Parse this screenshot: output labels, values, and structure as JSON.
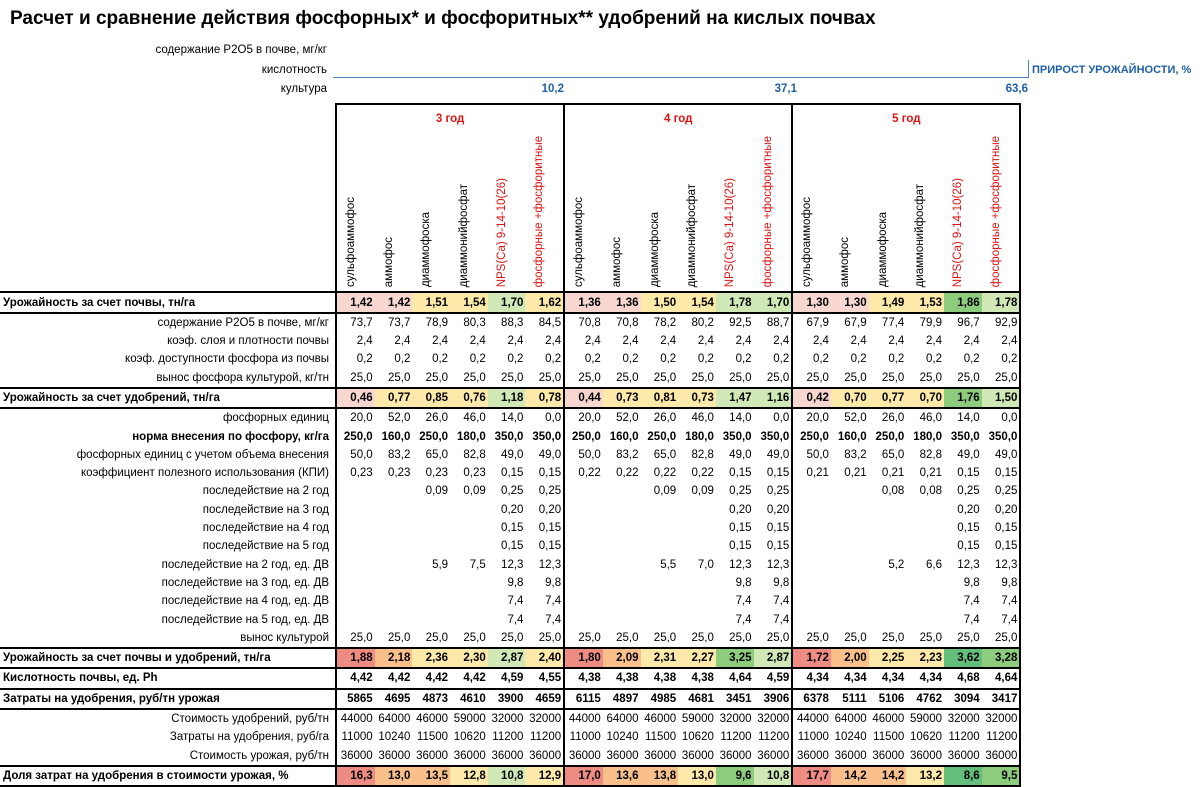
{
  "title": "Расчет и сравнение действия фосфорных* и фосфоритных**  удобрений на кислых почвах",
  "header_labels": {
    "p2o5": "содержание P2O5 в почве, мг/кг",
    "acidity": "кислотность",
    "crop": "культура"
  },
  "growth": {
    "label": "ПРИРОСТ УРОЖАЙНОСТИ, %",
    "values": [
      "10,2",
      "37,1",
      "63,6"
    ]
  },
  "years": [
    "3 год",
    "4 год",
    "5 год"
  ],
  "fertilizers": [
    {
      "name": "сульфоаммофос",
      "red": false
    },
    {
      "name": "аммофос",
      "red": false
    },
    {
      "name": "диаммофоска",
      "red": false
    },
    {
      "name": "диаммонийфосфат",
      "red": false
    },
    {
      "name": "NPS(Ca) 9-14-10(26)",
      "red": true
    },
    {
      "name": "фосфорные +фосфоритные",
      "red": true
    }
  ],
  "colors": {
    "red_high": "#f0a6a6",
    "red_mid": "#f7d7cf",
    "yellow": "#fde9a9",
    "light_green": "#cfe8b5",
    "green": "#8ccc7c",
    "strong_red": "#ee8b82",
    "orange": "#f9c08c",
    "strong_green": "#63be7b"
  },
  "rows": [
    {
      "label": "Урожайность за счет почвы, тн/га",
      "type": "key",
      "values": [
        "1,42",
        "1,42",
        "1,51",
        "1,54",
        "1,70",
        "1,62",
        "1,36",
        "1,36",
        "1,50",
        "1,54",
        "1,78",
        "1,70",
        "1,30",
        "1,30",
        "1,49",
        "1,53",
        "1,86",
        "1,78"
      ],
      "colors": [
        "red_mid",
        "red_mid",
        "yellow",
        "yellow",
        "light_green",
        "yellow",
        "red_mid",
        "red_mid",
        "yellow",
        "yellow",
        "light_green",
        "light_green",
        "red_mid",
        "red_mid",
        "yellow",
        "yellow",
        "green",
        "light_green"
      ]
    },
    {
      "label": "содержание P2O5 в почве, мг/кг",
      "type": "plain",
      "values": [
        "73,7",
        "73,7",
        "78,9",
        "80,3",
        "88,3",
        "84,5",
        "70,8",
        "70,8",
        "78,2",
        "80,2",
        "92,5",
        "88,7",
        "67,9",
        "67,9",
        "77,4",
        "79,9",
        "96,7",
        "92,9"
      ]
    },
    {
      "label": "коэф. слоя и плотности почвы",
      "type": "plain",
      "values": [
        "2,4",
        "2,4",
        "2,4",
        "2,4",
        "2,4",
        "2,4",
        "2,4",
        "2,4",
        "2,4",
        "2,4",
        "2,4",
        "2,4",
        "2,4",
        "2,4",
        "2,4",
        "2,4",
        "2,4",
        "2,4"
      ]
    },
    {
      "label": "коэф. доступности фосфора из почвы",
      "type": "plain",
      "values": [
        "0,2",
        "0,2",
        "0,2",
        "0,2",
        "0,2",
        "0,2",
        "0,2",
        "0,2",
        "0,2",
        "0,2",
        "0,2",
        "0,2",
        "0,2",
        "0,2",
        "0,2",
        "0,2",
        "0,2",
        "0,2"
      ]
    },
    {
      "label": "вынос фосфора культурой, кг/тн",
      "type": "plain",
      "values": [
        "25,0",
        "25,0",
        "25,0",
        "25,0",
        "25,0",
        "25,0",
        "25,0",
        "25,0",
        "25,0",
        "25,0",
        "25,0",
        "25,0",
        "25,0",
        "25,0",
        "25,0",
        "25,0",
        "25,0",
        "25,0"
      ]
    },
    {
      "label": "Урожайность за счет удобрений, тн/га",
      "type": "key",
      "values": [
        "0,46",
        "0,77",
        "0,85",
        "0,76",
        "1,18",
        "0,78",
        "0,44",
        "0,73",
        "0,81",
        "0,73",
        "1,47",
        "1,16",
        "0,42",
        "0,70",
        "0,77",
        "0,70",
        "1,76",
        "1,50"
      ],
      "colors": [
        "red_mid",
        "yellow",
        "yellow",
        "yellow",
        "light_green",
        "yellow",
        "red_mid",
        "yellow",
        "yellow",
        "yellow",
        "light_green",
        "light_green",
        "red_mid",
        "yellow",
        "yellow",
        "yellow",
        "green",
        "light_green"
      ]
    },
    {
      "label": "фосфорных единиц",
      "type": "plain",
      "values": [
        "20,0",
        "52,0",
        "26,0",
        "46,0",
        "14,0",
        "0,0",
        "20,0",
        "52,0",
        "26,0",
        "46,0",
        "14,0",
        "0,0",
        "20,0",
        "52,0",
        "26,0",
        "46,0",
        "14,0",
        "0,0"
      ]
    },
    {
      "label": "норма внесения по фосфору, кг/га",
      "type": "bold",
      "values": [
        "250,0",
        "160,0",
        "250,0",
        "180,0",
        "350,0",
        "350,0",
        "250,0",
        "160,0",
        "250,0",
        "180,0",
        "350,0",
        "350,0",
        "250,0",
        "160,0",
        "250,0",
        "180,0",
        "350,0",
        "350,0"
      ]
    },
    {
      "label": "фосфорных единиц  с учетом объема внесения",
      "type": "plain",
      "values": [
        "50,0",
        "83,2",
        "65,0",
        "82,8",
        "49,0",
        "49,0",
        "50,0",
        "83,2",
        "65,0",
        "82,8",
        "49,0",
        "49,0",
        "50,0",
        "83,2",
        "65,0",
        "82,8",
        "49,0",
        "49,0"
      ]
    },
    {
      "label": "коэффициент полезного использования (КПИ)",
      "type": "plain",
      "values": [
        "0,23",
        "0,23",
        "0,23",
        "0,23",
        "0,15",
        "0,15",
        "0,22",
        "0,22",
        "0,22",
        "0,22",
        "0,15",
        "0,15",
        "0,21",
        "0,21",
        "0,21",
        "0,21",
        "0,15",
        "0,15"
      ]
    },
    {
      "label": "последействие на 2 год",
      "type": "plain",
      "values": [
        "",
        "",
        "0,09",
        "0,09",
        "0,25",
        "0,25",
        "",
        "",
        "0,09",
        "0,09",
        "0,25",
        "0,25",
        "",
        "",
        "0,08",
        "0,08",
        "0,25",
        "0,25"
      ]
    },
    {
      "label": "последействие на 3 год",
      "type": "plain",
      "values": [
        "",
        "",
        "",
        "",
        "0,20",
        "0,20",
        "",
        "",
        "",
        "",
        "0,20",
        "0,20",
        "",
        "",
        "",
        "",
        "0,20",
        "0,20"
      ]
    },
    {
      "label": "последействие на 4 год",
      "type": "plain",
      "values": [
        "",
        "",
        "",
        "",
        "0,15",
        "0,15",
        "",
        "",
        "",
        "",
        "0,15",
        "0,15",
        "",
        "",
        "",
        "",
        "0,15",
        "0,15"
      ]
    },
    {
      "label": "последействие на 5 год",
      "type": "plain",
      "values": [
        "",
        "",
        "",
        "",
        "0,15",
        "0,15",
        "",
        "",
        "",
        "",
        "0,15",
        "0,15",
        "",
        "",
        "",
        "",
        "0,15",
        "0,15"
      ]
    },
    {
      "label": "последействие на 2 год, ед. ДВ",
      "type": "plain",
      "values": [
        "",
        "",
        "5,9",
        "7,5",
        "12,3",
        "12,3",
        "",
        "",
        "5,5",
        "7,0",
        "12,3",
        "12,3",
        "",
        "",
        "5,2",
        "6,6",
        "12,3",
        "12,3"
      ]
    },
    {
      "label": "последействие на 3 год, ед. ДВ",
      "type": "plain",
      "values": [
        "",
        "",
        "",
        "",
        "9,8",
        "9,8",
        "",
        "",
        "",
        "",
        "9,8",
        "9,8",
        "",
        "",
        "",
        "",
        "9,8",
        "9,8"
      ]
    },
    {
      "label": "последействие на 4 год, ед. ДВ",
      "type": "plain",
      "values": [
        "",
        "",
        "",
        "",
        "7,4",
        "7,4",
        "",
        "",
        "",
        "",
        "7,4",
        "7,4",
        "",
        "",
        "",
        "",
        "7,4",
        "7,4"
      ]
    },
    {
      "label": "последействие на 5 год, ед. ДВ",
      "type": "plain",
      "values": [
        "",
        "",
        "",
        "",
        "7,4",
        "7,4",
        "",
        "",
        "",
        "",
        "7,4",
        "7,4",
        "",
        "",
        "",
        "",
        "7,4",
        "7,4"
      ]
    },
    {
      "label": "вынос культурой",
      "type": "plain",
      "values": [
        "25,0",
        "25,0",
        "25,0",
        "25,0",
        "25,0",
        "25,0",
        "25,0",
        "25,0",
        "25,0",
        "25,0",
        "25,0",
        "25,0",
        "25,0",
        "25,0",
        "25,0",
        "25,0",
        "25,0",
        "25,0"
      ]
    },
    {
      "label": "Урожайность за счет почвы и удобрений, тн/га",
      "type": "key",
      "values": [
        "1,88",
        "2,18",
        "2,36",
        "2,30",
        "2,87",
        "2,40",
        "1,80",
        "2,09",
        "2,31",
        "2,27",
        "3,25",
        "2,87",
        "1,72",
        "2,00",
        "2,25",
        "2,23",
        "3,62",
        "3,28"
      ],
      "colors": [
        "strong_red",
        "orange",
        "yellow",
        "yellow",
        "light_green",
        "yellow",
        "strong_red",
        "orange",
        "yellow",
        "yellow",
        "green",
        "light_green",
        "strong_red",
        "orange",
        "yellow",
        "yellow",
        "strong_green",
        "green"
      ]
    },
    {
      "label": "Кислотность почвы, ед. Ph",
      "type": "key",
      "values": [
        "4,42",
        "4,42",
        "4,42",
        "4,42",
        "4,59",
        "4,55",
        "4,38",
        "4,38",
        "4,38",
        "4,38",
        "4,64",
        "4,59",
        "4,34",
        "4,34",
        "4,34",
        "4,34",
        "4,68",
        "4,64"
      ]
    },
    {
      "label": "Затраты на удобрения, руб/тн урожая",
      "type": "key",
      "values": [
        "5865",
        "4695",
        "4873",
        "4610",
        "3900",
        "4659",
        "6115",
        "4897",
        "4985",
        "4681",
        "3451",
        "3906",
        "6378",
        "5111",
        "5106",
        "4762",
        "3094",
        "3417"
      ]
    },
    {
      "label": "Стоимость удобрений, руб/тн",
      "type": "plain",
      "values": [
        "44000",
        "64000",
        "46000",
        "59000",
        "32000",
        "32000",
        "44000",
        "64000",
        "46000",
        "59000",
        "32000",
        "32000",
        "44000",
        "64000",
        "46000",
        "59000",
        "32000",
        "32000"
      ]
    },
    {
      "label": "Затраты на удобрения, руб/га",
      "type": "plain",
      "values": [
        "11000",
        "10240",
        "11500",
        "10620",
        "11200",
        "11200",
        "11000",
        "10240",
        "11500",
        "10620",
        "11200",
        "11200",
        "11000",
        "10240",
        "11500",
        "10620",
        "11200",
        "11200"
      ]
    },
    {
      "label": "Стоимость урожая, руб/тн",
      "type": "plain",
      "values": [
        "36000",
        "36000",
        "36000",
        "36000",
        "36000",
        "36000",
        "36000",
        "36000",
        "36000",
        "36000",
        "36000",
        "36000",
        "36000",
        "36000",
        "36000",
        "36000",
        "36000",
        "36000"
      ]
    },
    {
      "label": "Доля затрат на удобрения в стоимости урожая, %",
      "type": "key",
      "values": [
        "16,3",
        "13,0",
        "13,5",
        "12,8",
        "10,8",
        "12,9",
        "17,0",
        "13,6",
        "13,8",
        "13,0",
        "9,6",
        "10,8",
        "17,7",
        "14,2",
        "14,2",
        "13,2",
        "8,6",
        "9,5"
      ],
      "colors": [
        "strong_red",
        "orange",
        "orange",
        "yellow",
        "light_green",
        "yellow",
        "strong_red",
        "orange",
        "orange",
        "yellow",
        "green",
        "light_green",
        "strong_red",
        "orange",
        "orange",
        "yellow",
        "strong_green",
        "green"
      ]
    }
  ]
}
